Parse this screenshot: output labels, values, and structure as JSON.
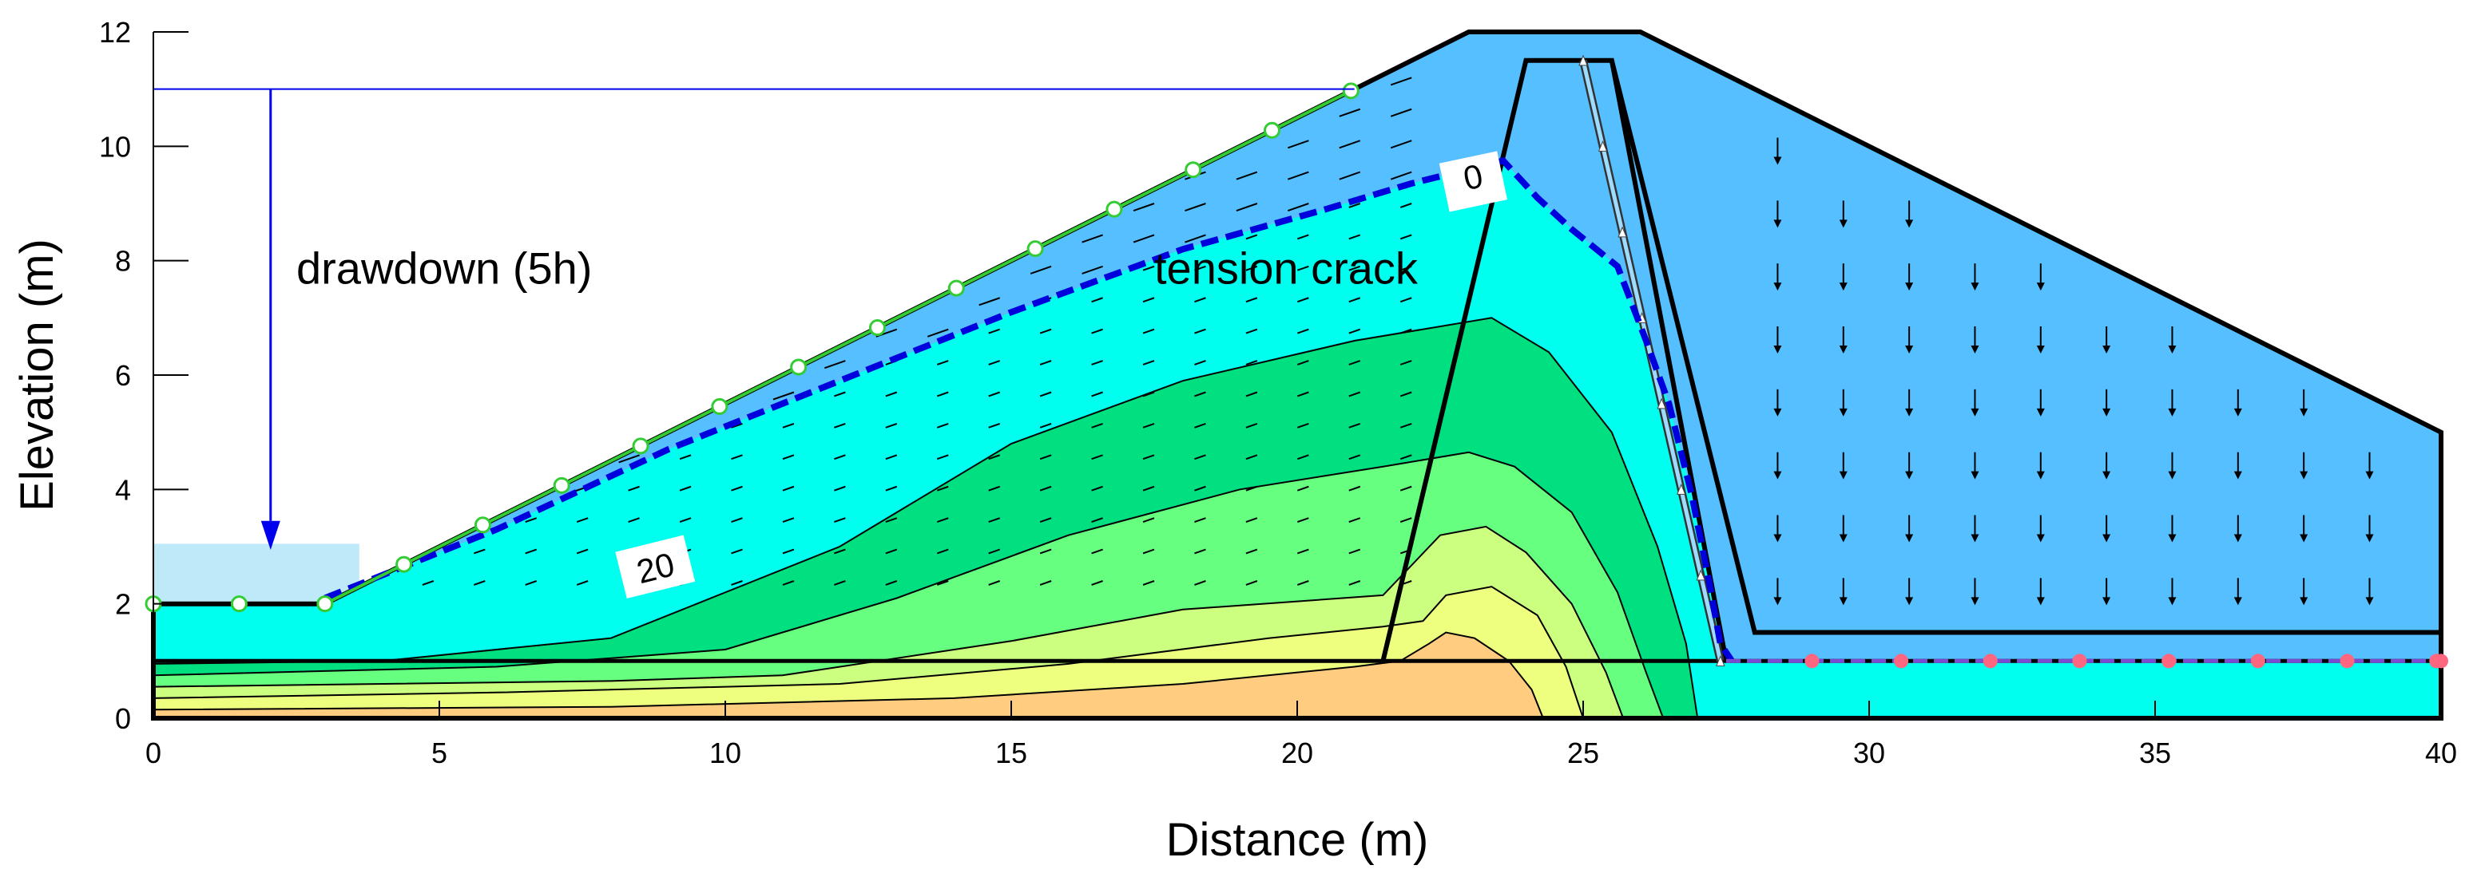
{
  "figure": {
    "x_axis_label": "Distance (m)",
    "y_axis_label": "Elevation (m)",
    "x_ticks": [
      0,
      5,
      10,
      15,
      20,
      25,
      30,
      35,
      40
    ],
    "y_ticks": [
      0,
      2,
      4,
      6,
      8,
      10,
      12
    ],
    "x_range": [
      0,
      40
    ],
    "y_range": [
      0,
      12
    ],
    "annotations": {
      "drawdown": "drawdown (5h)",
      "tension_crack": "tension crack",
      "contour_20": "20",
      "contour_0": "0"
    },
    "colors": {
      "band_1": "#ffcc80",
      "band_2": "#eeff80",
      "band_3": "#ccff80",
      "band_4": "#66ff80",
      "band_5": "#00e080",
      "band_6": "#00ffee",
      "unsaturated": "#55bfff",
      "reservoir_water": "#bde9f8",
      "phreatic_line": "#0000dd",
      "drawdown_line": "#0000ee",
      "seepage_nodes": "#ff6680",
      "boundary_nodes": "#33cc33"
    }
  }
}
